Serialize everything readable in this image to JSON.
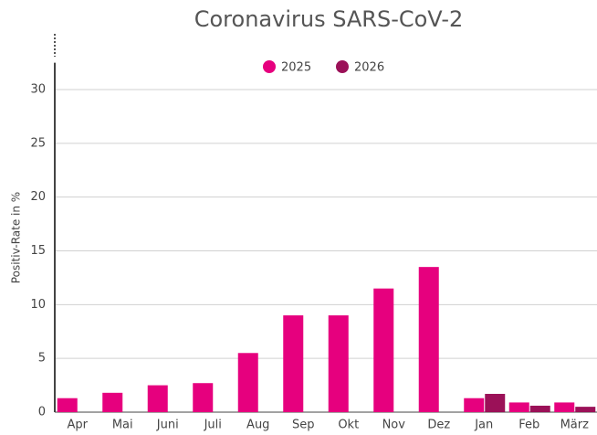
{
  "chart_data": {
    "type": "bar",
    "title": "Coronavirus SARS-CoV-2",
    "y_label": "Positiv-Rate in %",
    "categories": [
      "Apr",
      "Mai",
      "Juni",
      "Juli",
      "Aug",
      "Sep",
      "Okt",
      "Nov",
      "Dez",
      "Jan",
      "Feb",
      "März"
    ],
    "series": [
      {
        "name": "2025",
        "color": "#e6007e",
        "values": [
          1.3,
          1.8,
          2.5,
          2.7,
          5.5,
          9,
          9,
          11.5,
          13.5,
          1.3,
          0.9,
          0.9
        ]
      },
      {
        "name": "2026",
        "color": "#9b1158",
        "values": [
          null,
          null,
          null,
          null,
          null,
          null,
          null,
          null,
          null,
          1.7,
          0.6,
          0.5
        ]
      }
    ],
    "ylim": [
      0,
      32.5
    ],
    "yticks": [
      0,
      5,
      10,
      15,
      20,
      25,
      30
    ],
    "grid": true,
    "legend": "top"
  }
}
